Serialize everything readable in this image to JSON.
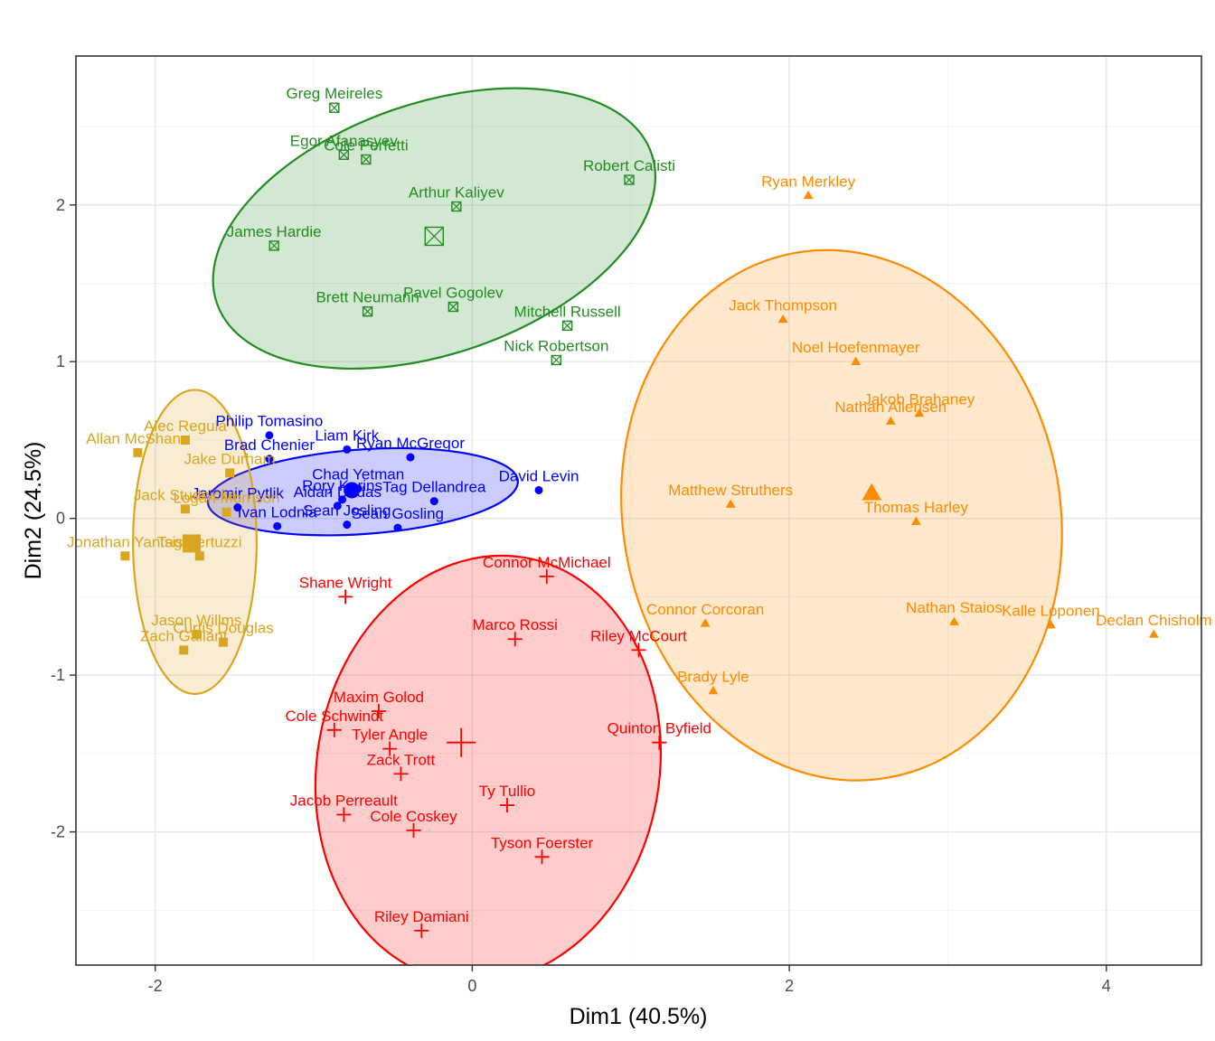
{
  "chart_data": {
    "type": "scatter",
    "title": "",
    "xlabel": "Dim1 (40.5%)",
    "ylabel": "Dim2 (24.5%)",
    "xlim": [
      -2.5,
      4.6
    ],
    "ylim": [
      -2.85,
      2.95
    ],
    "x_ticks": [
      -2,
      0,
      2,
      4
    ],
    "y_ticks": [
      -2,
      -1,
      0,
      1,
      2
    ],
    "x_tick_labels": [
      "-2",
      "0",
      "2",
      "4"
    ],
    "y_tick_labels": [
      "-2",
      "-1",
      "0",
      "1",
      "2"
    ],
    "grid": true,
    "legend": "none",
    "series": [
      {
        "color": "#228B22",
        "marker": "square-x",
        "centroid": [
          -0.24,
          1.8
        ],
        "ellipse": {
          "cx": -0.24,
          "cy": 1.85,
          "rx": 1.45,
          "ry": 0.8,
          "angle_deg": -19
        },
        "points": [
          {
            "label": "Greg Meireles",
            "x": -0.87,
            "y": 2.62
          },
          {
            "label": "Egor Afanasyev",
            "x": -0.81,
            "y": 2.32
          },
          {
            "label": "Cole Perfetti",
            "x": -0.67,
            "y": 2.29
          },
          {
            "label": "Robert Calisti",
            "x": 0.99,
            "y": 2.16
          },
          {
            "label": "Arthur Kaliyev",
            "x": -0.1,
            "y": 1.99
          },
          {
            "label": "James Hardie",
            "x": -1.25,
            "y": 1.74
          },
          {
            "label": "Pavel Gogolev",
            "x": -0.12,
            "y": 1.35
          },
          {
            "label": "Brett Neumann",
            "x": -0.66,
            "y": 1.32
          },
          {
            "label": "Mitchell Russell",
            "x": 0.6,
            "y": 1.23
          },
          {
            "label": "Nick Robertson",
            "x": 0.53,
            "y": 1.01
          }
        ]
      },
      {
        "color": "#FF8C00",
        "marker": "triangle",
        "centroid": [
          2.52,
          0.16
        ],
        "ellipse": {
          "cx": 2.33,
          "cy": 0.02,
          "rx": 1.38,
          "ry": 1.7,
          "angle_deg": -10
        },
        "points": [
          {
            "label": "Ryan Merkley",
            "x": 2.12,
            "y": 2.06
          },
          {
            "label": "Jack Thompson",
            "x": 1.96,
            "y": 1.27
          },
          {
            "label": "Noel Hoefenmayer",
            "x": 2.42,
            "y": 1.0
          },
          {
            "label": "Jakob Brahaney",
            "x": 2.82,
            "y": 0.67
          },
          {
            "label": "Nathan Allensen",
            "x": 2.64,
            "y": 0.62
          },
          {
            "label": "Matthew Struthers",
            "x": 1.63,
            "y": 0.09
          },
          {
            "label": "Thomas Harley",
            "x": 2.8,
            "y": -0.02
          },
          {
            "label": "Nathan Staios",
            "x": 3.04,
            "y": -0.66
          },
          {
            "label": "Kalle Loponen",
            "x": 3.65,
            "y": -0.68
          },
          {
            "label": "Declan Chisholm",
            "x": 4.3,
            "y": -0.74
          },
          {
            "label": "Connor Corcoran",
            "x": 1.47,
            "y": -0.67
          },
          {
            "label": "Brady Lyle",
            "x": 1.52,
            "y": -1.1
          }
        ]
      },
      {
        "color": "#0000FF",
        "marker": "circle",
        "centroid": [
          -0.76,
          0.18
        ],
        "ellipse": {
          "cx": -0.69,
          "cy": 0.17,
          "rx": 0.98,
          "ry": 0.27,
          "angle_deg": -4
        },
        "points": [
          {
            "label": "Philip Tomasino",
            "x": -1.28,
            "y": 0.53
          },
          {
            "label": "Liam Kirk",
            "x": -0.79,
            "y": 0.44
          },
          {
            "label": "Ryan McGregor",
            "x": -0.39,
            "y": 0.39
          },
          {
            "label": "Brad Chenier",
            "x": -1.28,
            "y": 0.38
          },
          {
            "label": "David Levin",
            "x": 0.42,
            "y": 0.18
          },
          {
            "label": "Chad Yetman",
            "x": -0.72,
            "y": 0.19
          },
          {
            "label": "Rory Kerins",
            "x": -0.82,
            "y": 0.12
          },
          {
            "label": "Tag Dellandrea",
            "x": -0.24,
            "y": 0.11
          },
          {
            "label": "Jaromir Pytlik",
            "x": -1.48,
            "y": 0.07
          },
          {
            "label": "Aidan Dudas",
            "x": -0.85,
            "y": 0.08
          },
          {
            "label": "Ivan Lodnia",
            "x": -1.23,
            "y": -0.05
          },
          {
            "label": "Sean Josling",
            "x": -0.79,
            "y": -0.04
          },
          {
            "label": "Sean Gosling",
            "x": -0.47,
            "y": -0.06
          }
        ]
      },
      {
        "color": "#DAA520",
        "marker": "square",
        "centroid": [
          -1.77,
          -0.16
        ],
        "ellipse": {
          "cx": -1.75,
          "cy": -0.15,
          "rx": 0.39,
          "ry": 0.97,
          "angle_deg": 0
        },
        "points": [
          {
            "label": "Alec Regula",
            "x": -1.81,
            "y": 0.5
          },
          {
            "label": "Allan McShane",
            "x": -2.11,
            "y": 0.42
          },
          {
            "label": "Jake Durham",
            "x": -1.53,
            "y": 0.29
          },
          {
            "label": "Jack Studnicka",
            "x": -1.81,
            "y": 0.06
          },
          {
            "label": "Logan Morrison",
            "x": -1.55,
            "y": 0.04
          },
          {
            "label": "Jonathan Yantsis",
            "x": -2.19,
            "y": -0.24
          },
          {
            "label": "Tag Bertuzzi",
            "x": -1.72,
            "y": -0.24
          },
          {
            "label": "Jason Willms",
            "x": -1.74,
            "y": -0.74
          },
          {
            "label": "Curtis Douglas",
            "x": -1.57,
            "y": -0.79
          },
          {
            "label": "Zach Gallant",
            "x": -1.82,
            "y": -0.84
          }
        ]
      },
      {
        "color": "#FF0000",
        "marker": "plus",
        "centroid": [
          -0.07,
          -1.43
        ],
        "ellipse": {
          "cx": 0.1,
          "cy": -1.6,
          "rx": 1.08,
          "ry": 1.37,
          "angle_deg": 10
        },
        "points": [
          {
            "label": "Connor McMichael",
            "x": 0.47,
            "y": -0.37
          },
          {
            "label": "Shane Wright",
            "x": -0.8,
            "y": -0.5
          },
          {
            "label": "Marco Rossi",
            "x": 0.27,
            "y": -0.77
          },
          {
            "label": "Riley McCourt",
            "x": 1.05,
            "y": -0.84
          },
          {
            "label": "Maxim Golod",
            "x": -0.59,
            "y": -1.23
          },
          {
            "label": "Cole Schwindt",
            "x": -0.87,
            "y": -1.35
          },
          {
            "label": "Tyler Angle",
            "x": -0.52,
            "y": -1.47
          },
          {
            "label": "Quinton Byfield",
            "x": 1.18,
            "y": -1.43
          },
          {
            "label": "Zack Trott",
            "x": -0.45,
            "y": -1.63
          },
          {
            "label": "Ty Tullio",
            "x": 0.22,
            "y": -1.83
          },
          {
            "label": "Jacob Perreault",
            "x": -0.81,
            "y": -1.89
          },
          {
            "label": "Cole Coskey",
            "x": -0.37,
            "y": -1.99
          },
          {
            "label": "Tyson Foerster",
            "x": 0.44,
            "y": -2.16
          },
          {
            "label": "Riley Damiani",
            "x": -0.32,
            "y": -2.63
          }
        ]
      }
    ]
  }
}
